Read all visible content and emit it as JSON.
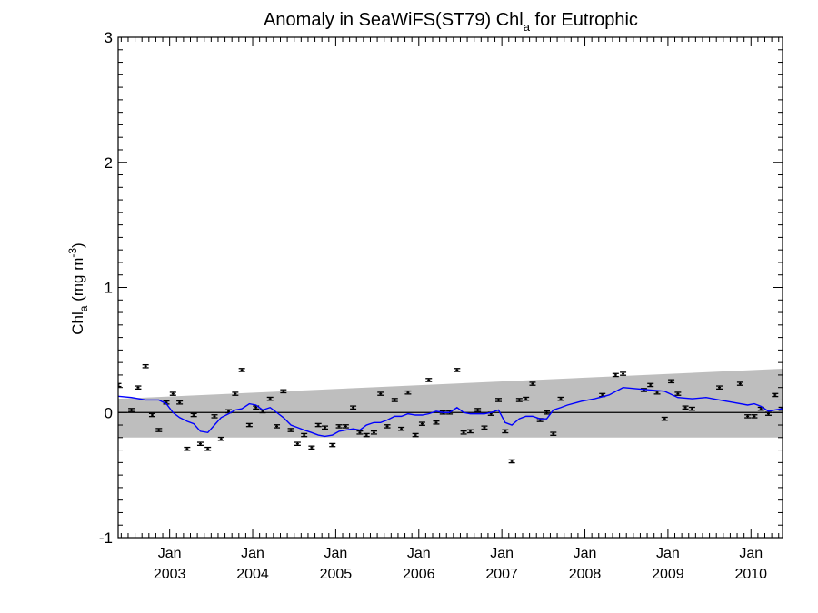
{
  "chart_data": {
    "type": "scatter",
    "title": {
      "prefix": "Anomaly in SeaWiFS(ST79) Chl",
      "subscript": "a",
      "suffix": " for Eutrophic"
    },
    "ylabel": {
      "prefix": "Chl",
      "subscript": "a",
      "middle": " (mg m",
      "superscript": "-3",
      "suffix": ")"
    },
    "xlim": [
      2002.38,
      2010.38
    ],
    "ylim": [
      -1.0,
      3.0
    ],
    "yticks": [
      "-1",
      "0",
      "1",
      "2",
      "3"
    ],
    "xticks": [
      {
        "month": "Jan",
        "year": "2003",
        "x": 2003.0
      },
      {
        "month": "Jan",
        "year": "2004",
        "x": 2004.0
      },
      {
        "month": "Jan",
        "year": "2005",
        "x": 2005.0
      },
      {
        "month": "Jan",
        "year": "2006",
        "x": 2006.0
      },
      {
        "month": "Jan",
        "year": "2007",
        "x": 2007.0
      },
      {
        "month": "Jan",
        "year": "2008",
        "x": 2008.0
      },
      {
        "month": "Jan",
        "year": "2009",
        "x": 2009.0
      },
      {
        "month": "Jan",
        "year": "2010",
        "x": 2010.0
      }
    ],
    "zero_line": 0,
    "band": {
      "color": "#bebebe",
      "lower": [
        [
          2002.38,
          -0.2
        ],
        [
          2010.38,
          -0.2
        ]
      ],
      "upper": [
        [
          2002.38,
          0.11
        ],
        [
          2010.38,
          0.35
        ]
      ]
    },
    "series": [
      {
        "kind": "monthly_points_with_error_bars",
        "color": "#000000",
        "error": 0.012,
        "points": [
          {
            "x": 2002.38,
            "y": 0.22
          },
          {
            "x": 2002.54,
            "y": 0.02
          },
          {
            "x": 2002.62,
            "y": 0.2
          },
          {
            "x": 2002.71,
            "y": 0.37
          },
          {
            "x": 2002.79,
            "y": -0.02
          },
          {
            "x": 2002.87,
            "y": -0.14
          },
          {
            "x": 2002.96,
            "y": 0.08
          },
          {
            "x": 2003.04,
            "y": 0.15
          },
          {
            "x": 2003.12,
            "y": 0.08
          },
          {
            "x": 2003.21,
            "y": -0.29
          },
          {
            "x": 2003.29,
            "y": -0.02
          },
          {
            "x": 2003.37,
            "y": -0.25
          },
          {
            "x": 2003.46,
            "y": -0.29
          },
          {
            "x": 2003.54,
            "y": -0.03
          },
          {
            "x": 2003.62,
            "y": -0.21
          },
          {
            "x": 2003.71,
            "y": 0.01
          },
          {
            "x": 2003.79,
            "y": 0.15
          },
          {
            "x": 2003.87,
            "y": 0.34
          },
          {
            "x": 2003.96,
            "y": -0.1
          },
          {
            "x": 2004.04,
            "y": 0.04
          },
          {
            "x": 2004.12,
            "y": 0.01
          },
          {
            "x": 2004.21,
            "y": 0.11
          },
          {
            "x": 2004.29,
            "y": -0.11
          },
          {
            "x": 2004.37,
            "y": 0.17
          },
          {
            "x": 2004.46,
            "y": -0.14
          },
          {
            "x": 2004.54,
            "y": -0.25
          },
          {
            "x": 2004.62,
            "y": -0.18
          },
          {
            "x": 2004.71,
            "y": -0.28
          },
          {
            "x": 2004.79,
            "y": -0.1
          },
          {
            "x": 2004.87,
            "y": -0.12
          },
          {
            "x": 2004.96,
            "y": -0.26
          },
          {
            "x": 2005.04,
            "y": -0.11
          },
          {
            "x": 2005.12,
            "y": -0.11
          },
          {
            "x": 2005.21,
            "y": 0.04
          },
          {
            "x": 2005.29,
            "y": -0.16
          },
          {
            "x": 2005.37,
            "y": -0.18
          },
          {
            "x": 2005.46,
            "y": -0.16
          },
          {
            "x": 2005.54,
            "y": 0.15
          },
          {
            "x": 2005.62,
            "y": -0.11
          },
          {
            "x": 2005.71,
            "y": 0.1
          },
          {
            "x": 2005.79,
            "y": -0.13
          },
          {
            "x": 2005.87,
            "y": 0.16
          },
          {
            "x": 2005.96,
            "y": -0.18
          },
          {
            "x": 2006.04,
            "y": -0.09
          },
          {
            "x": 2006.12,
            "y": 0.26
          },
          {
            "x": 2006.21,
            "y": -0.08
          },
          {
            "x": 2006.29,
            "y": 0.0
          },
          {
            "x": 2006.37,
            "y": 0.0
          },
          {
            "x": 2006.46,
            "y": 0.34
          },
          {
            "x": 2006.54,
            "y": -0.16
          },
          {
            "x": 2006.62,
            "y": -0.15
          },
          {
            "x": 2006.71,
            "y": 0.02
          },
          {
            "x": 2006.79,
            "y": -0.12
          },
          {
            "x": 2006.87,
            "y": -0.01
          },
          {
            "x": 2006.96,
            "y": 0.1
          },
          {
            "x": 2007.04,
            "y": -0.15
          },
          {
            "x": 2007.12,
            "y": -0.39
          },
          {
            "x": 2007.21,
            "y": 0.1
          },
          {
            "x": 2007.29,
            "y": 0.11
          },
          {
            "x": 2007.37,
            "y": 0.23
          },
          {
            "x": 2007.46,
            "y": -0.06
          },
          {
            "x": 2007.54,
            "y": 0.0
          },
          {
            "x": 2007.62,
            "y": -0.17
          },
          {
            "x": 2007.71,
            "y": 0.11
          },
          {
            "x": 2008.21,
            "y": 0.14
          },
          {
            "x": 2008.37,
            "y": 0.3
          },
          {
            "x": 2008.46,
            "y": 0.31
          },
          {
            "x": 2008.71,
            "y": 0.18
          },
          {
            "x": 2008.79,
            "y": 0.22
          },
          {
            "x": 2008.87,
            "y": 0.16
          },
          {
            "x": 2008.96,
            "y": -0.05
          },
          {
            "x": 2009.04,
            "y": 0.25
          },
          {
            "x": 2009.12,
            "y": 0.15
          },
          {
            "x": 2009.21,
            "y": 0.04
          },
          {
            "x": 2009.29,
            "y": 0.03
          },
          {
            "x": 2009.62,
            "y": 0.2
          },
          {
            "x": 2009.87,
            "y": 0.23
          },
          {
            "x": 2009.96,
            "y": -0.03
          },
          {
            "x": 2010.04,
            "y": -0.03
          },
          {
            "x": 2010.12,
            "y": 0.03
          },
          {
            "x": 2010.21,
            "y": -0.01
          },
          {
            "x": 2010.29,
            "y": 0.14
          },
          {
            "x": 2010.37,
            "y": 0.03
          }
        ]
      },
      {
        "kind": "running_mean_line",
        "color": "#0000ff",
        "points": [
          [
            2002.38,
            0.13
          ],
          [
            2002.54,
            0.12
          ],
          [
            2002.71,
            0.1
          ],
          [
            2002.87,
            0.1
          ],
          [
            2002.96,
            0.07
          ],
          [
            2003.04,
            0.0
          ],
          [
            2003.12,
            -0.04
          ],
          [
            2003.21,
            -0.07
          ],
          [
            2003.29,
            -0.09
          ],
          [
            2003.37,
            -0.15
          ],
          [
            2003.46,
            -0.16
          ],
          [
            2003.54,
            -0.1
          ],
          [
            2003.62,
            -0.04
          ],
          [
            2003.71,
            -0.01
          ],
          [
            2003.79,
            0.02
          ],
          [
            2003.87,
            0.03
          ],
          [
            2003.96,
            0.07
          ],
          [
            2004.04,
            0.06
          ],
          [
            2004.12,
            0.02
          ],
          [
            2004.21,
            0.04
          ],
          [
            2004.29,
            0.0
          ],
          [
            2004.37,
            -0.04
          ],
          [
            2004.46,
            -0.1
          ],
          [
            2004.54,
            -0.12
          ],
          [
            2004.62,
            -0.14
          ],
          [
            2004.71,
            -0.16
          ],
          [
            2004.79,
            -0.18
          ],
          [
            2004.87,
            -0.19
          ],
          [
            2004.96,
            -0.18
          ],
          [
            2005.04,
            -0.15
          ],
          [
            2005.12,
            -0.14
          ],
          [
            2005.21,
            -0.13
          ],
          [
            2005.29,
            -0.14
          ],
          [
            2005.37,
            -0.1
          ],
          [
            2005.46,
            -0.08
          ],
          [
            2005.54,
            -0.08
          ],
          [
            2005.62,
            -0.06
          ],
          [
            2005.71,
            -0.03
          ],
          [
            2005.79,
            -0.03
          ],
          [
            2005.87,
            -0.01
          ],
          [
            2005.96,
            -0.02
          ],
          [
            2006.04,
            -0.02
          ],
          [
            2006.12,
            -0.01
          ],
          [
            2006.21,
            0.01
          ],
          [
            2006.29,
            0.0
          ],
          [
            2006.37,
            0.0
          ],
          [
            2006.46,
            0.04
          ],
          [
            2006.54,
            0.0
          ],
          [
            2006.62,
            -0.01
          ],
          [
            2006.71,
            -0.01
          ],
          [
            2006.79,
            -0.01
          ],
          [
            2006.87,
            0.0
          ],
          [
            2006.96,
            0.02
          ],
          [
            2007.04,
            -0.08
          ],
          [
            2007.12,
            -0.1
          ],
          [
            2007.21,
            -0.05
          ],
          [
            2007.29,
            -0.03
          ],
          [
            2007.37,
            -0.03
          ],
          [
            2007.46,
            -0.05
          ],
          [
            2007.54,
            -0.05
          ],
          [
            2007.62,
            0.02
          ],
          [
            2007.71,
            0.04
          ],
          [
            2007.79,
            0.06
          ],
          [
            2007.96,
            0.09
          ],
          [
            2008.12,
            0.11
          ],
          [
            2008.29,
            0.14
          ],
          [
            2008.46,
            0.2
          ],
          [
            2008.62,
            0.19
          ],
          [
            2008.79,
            0.18
          ],
          [
            2008.96,
            0.17
          ],
          [
            2009.12,
            0.12
          ],
          [
            2009.29,
            0.11
          ],
          [
            2009.46,
            0.12
          ],
          [
            2009.62,
            0.1
          ],
          [
            2009.79,
            0.08
          ],
          [
            2009.96,
            0.06
          ],
          [
            2010.04,
            0.07
          ],
          [
            2010.12,
            0.05
          ],
          [
            2010.21,
            0.01
          ],
          [
            2010.29,
            0.02
          ],
          [
            2010.38,
            0.03
          ]
        ]
      }
    ]
  }
}
